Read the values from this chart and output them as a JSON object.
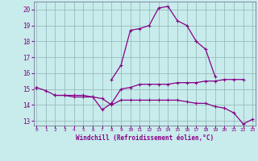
{
  "xlabel": "Windchill (Refroidissement éolien,°C)",
  "bg_color": "#c8ecec",
  "line_color": "#880088",
  "grid_color": "#99bbbb",
  "x_ticks": [
    0,
    1,
    2,
    3,
    4,
    5,
    6,
    7,
    8,
    9,
    10,
    11,
    12,
    13,
    14,
    15,
    16,
    17,
    18,
    19,
    20,
    21,
    22,
    23
  ],
  "y_ticks": [
    13,
    14,
    15,
    16,
    17,
    18,
    19,
    20
  ],
  "xlim": [
    -0.3,
    23.3
  ],
  "ylim": [
    12.7,
    20.5
  ],
  "series": [
    [
      15.1,
      14.9,
      14.6,
      14.6,
      14.6,
      14.6,
      14.5,
      13.7,
      14.1,
      15.0,
      15.1,
      15.3,
      15.3,
      15.3,
      15.3,
      15.4,
      15.4,
      15.4,
      15.5,
      15.5,
      15.6,
      15.6,
      15.6,
      null
    ],
    [
      15.1,
      null,
      14.6,
      14.6,
      14.5,
      14.5,
      14.5,
      14.4,
      14.0,
      14.3,
      14.3,
      14.3,
      14.3,
      14.3,
      14.3,
      14.3,
      14.2,
      14.1,
      14.1,
      13.9,
      13.8,
      13.5,
      12.8,
      13.1
    ],
    [
      15.1,
      null,
      null,
      null,
      null,
      null,
      null,
      null,
      15.6,
      16.5,
      18.7,
      18.8,
      19.0,
      20.1,
      20.2,
      19.3,
      19.0,
      18.0,
      17.5,
      15.8,
      null,
      null,
      null,
      null
    ]
  ]
}
